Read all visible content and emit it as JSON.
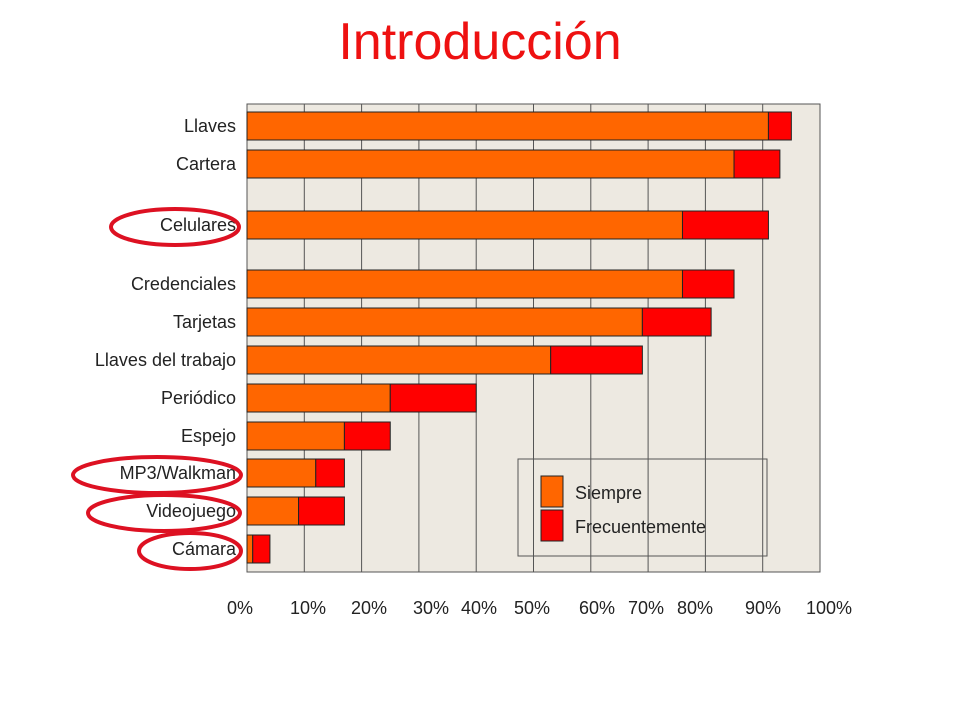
{
  "slide": {
    "title": "Introducción"
  },
  "chart_data": {
    "type": "bar",
    "orientation": "horizontal",
    "stacked": true,
    "categories": [
      "Llaves",
      "Cartera",
      "Celulares",
      "Credenciales",
      "Tarjetas",
      "Llaves del trabajo",
      "Periódico",
      "Espejo",
      "MP3/Walkman",
      "Videojuego",
      "Cámara"
    ],
    "series": [
      {
        "name": "Siempre",
        "color": "#ff6600",
        "values": [
          91,
          85,
          76,
          76,
          69,
          53,
          25,
          17,
          12,
          9,
          1
        ]
      },
      {
        "name": "Frecuentemente",
        "color": "#ff0000",
        "values": [
          4,
          8,
          15,
          9,
          12,
          16,
          15,
          8,
          5,
          8,
          3
        ]
      }
    ],
    "x_ticks": [
      "0%",
      "10%",
      "20%",
      "30%",
      "40%",
      "50%",
      "60%",
      "70%",
      "80%",
      "90%",
      "100%"
    ],
    "xlim": [
      0,
      100
    ],
    "grid": true,
    "plot_background": "#ede9e1",
    "legend_position": "lower-right",
    "highlighted_categories": [
      "Celulares",
      "MP3/Walkman",
      "Videojuego",
      "Cámara"
    ],
    "highlight_color": "#dd1122"
  }
}
